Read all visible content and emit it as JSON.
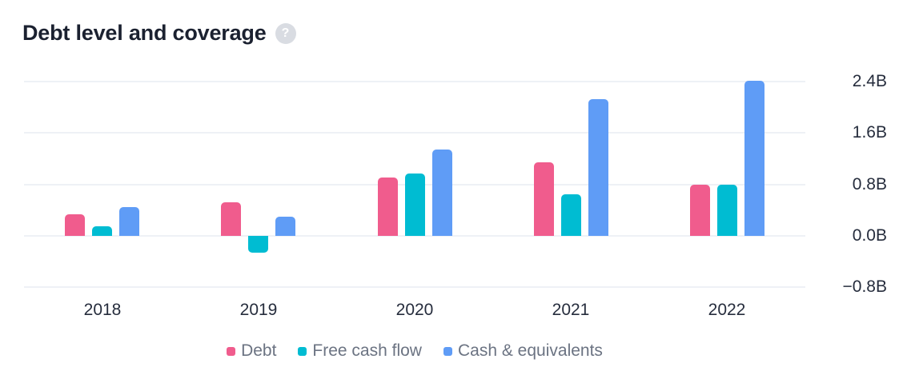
{
  "header": {
    "title": "Debt level and coverage",
    "help_glyph": "?"
  },
  "legend": [
    {
      "label": "Debt",
      "color": "#f05c8d"
    },
    {
      "label": "Free cash flow",
      "color": "#00bcd2"
    },
    {
      "label": "Cash & equivalents",
      "color": "#5f9cf6"
    }
  ],
  "chart_data": {
    "type": "bar",
    "title": "Debt level and coverage",
    "categories": [
      "2018",
      "2019",
      "2020",
      "2021",
      "2022"
    ],
    "series": [
      {
        "name": "Debt",
        "color": "#f05c8d",
        "values": [
          0.33,
          0.52,
          0.91,
          1.14,
          0.8
        ]
      },
      {
        "name": "Free cash flow",
        "color": "#00bcd2",
        "values": [
          0.15,
          -0.26,
          0.97,
          0.64,
          0.8
        ]
      },
      {
        "name": "Cash & equivalents",
        "color": "#5f9cf6",
        "values": [
          0.45,
          0.3,
          1.34,
          2.12,
          2.41
        ]
      }
    ],
    "unit": "B",
    "xlabel": "",
    "ylabel": "",
    "ylim": [
      -0.8,
      2.4
    ],
    "grid": true,
    "legend_position": "bottom",
    "y_axis_side": "right",
    "y_ticks": [
      {
        "label": "2.4B",
        "value": 2.4
      },
      {
        "label": "1.6B",
        "value": 1.6
      },
      {
        "label": "0.8B",
        "value": 0.8
      },
      {
        "label": "0.0B",
        "value": 0.0
      },
      {
        "label": "−0.8B",
        "value": -0.8
      }
    ]
  },
  "colors": {
    "background": "#ffffff",
    "grid": "#eef1f6",
    "axis_text": "#262d3d",
    "legend_text": "#6b7382",
    "title_text": "#1b2130",
    "help_bg": "#d9dce2",
    "help_glyph_color": "#ffffff"
  }
}
